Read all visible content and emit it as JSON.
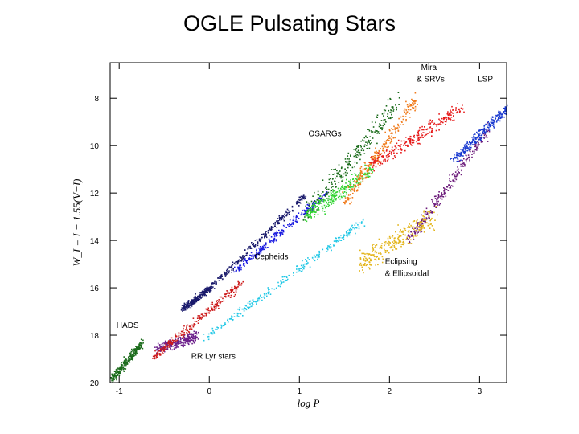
{
  "title": "OGLE Pulsating Stars",
  "chart_data": {
    "type": "scatter",
    "xlabel": "log P",
    "ylabel": "W_I = I − 1.55(V−I)",
    "xlim": [
      -1.1,
      3.3
    ],
    "ylim": [
      20,
      6.5
    ],
    "y_inverted": true,
    "grid": false,
    "x_ticks": [
      -1,
      0,
      1,
      2,
      3
    ],
    "y_ticks": [
      8,
      10,
      12,
      14,
      16,
      18,
      20
    ],
    "groups": [
      {
        "label": "HADS",
        "color": "#1b6b1b",
        "segments": [
          [
            -1.1,
            19.9,
            -0.75,
            18.3
          ]
        ],
        "spread": 0.25
      },
      {
        "label": "RR Lyr stars",
        "color": "#6b1f8a",
        "segments": [
          [
            -0.6,
            18.6,
            -0.15,
            18.0
          ]
        ],
        "spread": 0.35
      },
      {
        "label": "",
        "color": "#cc1a1a",
        "segments": [
          [
            -0.62,
            18.9,
            0.35,
            15.8
          ]
        ],
        "spread": 0.25
      },
      {
        "label": "",
        "color": "#19196b",
        "segments": [
          [
            -0.3,
            16.9,
            0.0,
            16.0
          ],
          [
            0.0,
            16.0,
            1.05,
            12.1
          ]
        ],
        "spread": 0.18
      },
      {
        "label": "Cepheids",
        "color": "#1a1ae0",
        "segments": [
          [
            0.3,
            15.2,
            1.3,
            12.0
          ]
        ],
        "spread": 0.22
      },
      {
        "label": "",
        "color": "#22c8e6",
        "segments": [
          [
            -0.05,
            18.1,
            1.7,
            13.2
          ]
        ],
        "spread": 0.25
      },
      {
        "label": "OSARGs",
        "color": "#1a6b1a",
        "segments": [
          [
            1.05,
            13.0,
            2.1,
            8.1
          ]
        ],
        "spread": 0.7
      },
      {
        "label": "",
        "color": "#33d433",
        "segments": [
          [
            1.05,
            13.0,
            1.8,
            11.0
          ]
        ],
        "spread": 0.5
      },
      {
        "label": "Mira & SRVs",
        "color": "#f07a1a",
        "segments": [
          [
            1.5,
            12.3,
            2.3,
            8.0
          ]
        ],
        "spread": 0.5
      },
      {
        "label": "",
        "color": "#e61a1a",
        "segments": [
          [
            1.8,
            10.8,
            2.8,
            8.4
          ]
        ],
        "spread": 0.45
      },
      {
        "label": "LSP",
        "color": "#6b1a7a",
        "segments": [
          [
            2.2,
            14.0,
            3.1,
            9.3
          ]
        ],
        "spread": 0.4
      },
      {
        "label": "",
        "color": "#1a3ad0",
        "segments": [
          [
            2.7,
            10.6,
            3.3,
            8.4
          ]
        ],
        "spread": 0.3
      },
      {
        "label": "Eclipsing & Ellipsoidal",
        "color": "#e3b51a",
        "segments": [
          [
            1.65,
            15.0,
            2.5,
            13.0
          ]
        ],
        "spread": 0.7
      }
    ],
    "annotations": [
      {
        "text": "HADS",
        "x": -1.03,
        "y": 17.7
      },
      {
        "text": "RR Lyr stars",
        "x": -0.2,
        "y": 19.0
      },
      {
        "text": "Cepheids",
        "x": 0.5,
        "y": 14.8
      },
      {
        "text": "OSARGs",
        "x": 1.1,
        "y": 9.6
      },
      {
        "text": "Mira",
        "x": 2.35,
        "y": 6.8
      },
      {
        "text": "& SRVs",
        "x": 2.3,
        "y": 7.3
      },
      {
        "text": "LSP",
        "x": 2.98,
        "y": 7.3
      },
      {
        "text": "Eclipsing",
        "x": 1.95,
        "y": 15.0
      },
      {
        "text": "& Ellipsoidal",
        "x": 1.95,
        "y": 15.5
      }
    ]
  }
}
